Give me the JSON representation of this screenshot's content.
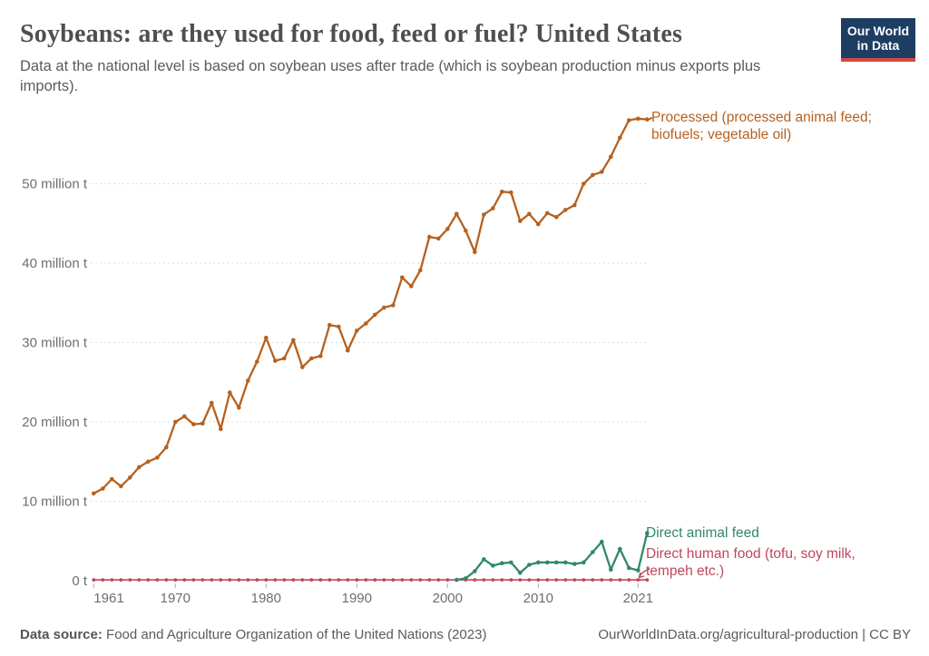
{
  "header": {
    "title": "Soybeans: are they used for food, feed or fuel? United States",
    "subtitle": "Data at the national level is based on soybean uses after trade (which is soybean production minus exports plus imports).",
    "logo": {
      "line1": "Our World",
      "line2": "in Data",
      "bg_color": "#1d3d63",
      "stripe_color": "#cf4a3f"
    }
  },
  "footer": {
    "source_label": "Data source:",
    "source_text": " Food and Agriculture Organization of the United Nations (2023)",
    "credit": "OurWorldInData.org/agricultural-production | CC BY"
  },
  "chart_data": {
    "type": "line",
    "title": "Soybeans: are they used for food, feed or fuel? United States",
    "subtitle": "Data at the national level is based on soybean uses after trade (which is soybean production minus exports plus imports).",
    "unit": "million tonnes",
    "grid": "horizontal dashed",
    "legend_position": "labels at right end of lines",
    "x_range": [
      1961,
      2022
    ],
    "ylim": [
      0,
      58.5
    ],
    "x_tick_years": [
      1961,
      1970,
      1980,
      1990,
      2000,
      2010,
      2021
    ],
    "x_ticks": [
      "1961",
      "1970",
      "1980",
      "1990",
      "2000",
      "2010",
      "2021"
    ],
    "y_tick_values": [
      0,
      10,
      20,
      30,
      40,
      50
    ],
    "y_ticks": [
      "0 t",
      "10 million t",
      "20 million t",
      "30 million t",
      "40 million t",
      "50 million t"
    ],
    "series": [
      {
        "id": "processed",
        "name": "Processed (processed animal feed; biofuels; vegetable oil)",
        "label_lines": [
          "Processed (processed animal feed;",
          "biofuels; vegetable oil)"
        ],
        "color": "#b5611f",
        "start_year": 1961,
        "values": [
          11.0,
          11.6,
          12.8,
          11.9,
          13.0,
          14.3,
          15.0,
          15.5,
          16.8,
          20.0,
          20.7,
          19.7,
          19.8,
          22.4,
          19.1,
          23.7,
          21.8,
          25.2,
          27.6,
          30.6,
          27.7,
          28.0,
          30.3,
          26.9,
          28.0,
          28.3,
          32.2,
          32.0,
          29.0,
          31.5,
          32.4,
          33.5,
          34.4,
          34.7,
          38.2,
          37.1,
          39.1,
          43.3,
          43.1,
          44.3,
          46.2,
          44.1,
          41.4,
          46.1,
          46.9,
          49.0,
          48.9,
          45.3,
          46.2,
          44.9,
          46.3,
          45.8,
          46.7,
          47.3,
          50.0,
          51.1,
          51.5,
          53.4,
          55.8,
          58.0,
          58.2,
          58.1
        ]
      },
      {
        "id": "direct-animal-feed",
        "name": "Direct animal feed",
        "label_lines": [
          "Direct animal feed"
        ],
        "color": "#318868",
        "start_year": 2001,
        "values": [
          0.1,
          0.3,
          1.2,
          2.7,
          1.9,
          2.2,
          2.3,
          1.0,
          2.0,
          2.3,
          2.3,
          2.3,
          2.3,
          2.1,
          2.3,
          3.6,
          4.9,
          1.4,
          4.0,
          1.6,
          1.3,
          6.0
        ]
      },
      {
        "id": "direct-human-food",
        "name": "Direct human food (tofu, soy milk, tempeh etc.)",
        "label_lines": [
          "Direct human food (tofu, soy milk,",
          "tempeh etc.)"
        ],
        "color": "#c0455b",
        "start_year": 1961,
        "values": [
          0.1,
          0.1,
          0.1,
          0.1,
          0.1,
          0.1,
          0.1,
          0.1,
          0.1,
          0.1,
          0.1,
          0.1,
          0.1,
          0.1,
          0.1,
          0.1,
          0.1,
          0.1,
          0.1,
          0.1,
          0.1,
          0.1,
          0.1,
          0.1,
          0.1,
          0.1,
          0.1,
          0.1,
          0.1,
          0.1,
          0.1,
          0.1,
          0.1,
          0.1,
          0.1,
          0.1,
          0.1,
          0.1,
          0.1,
          0.1,
          0.1,
          0.1,
          0.1,
          0.1,
          0.1,
          0.1,
          0.1,
          0.1,
          0.1,
          0.1,
          0.1,
          0.1,
          0.1,
          0.1,
          0.1,
          0.1,
          0.1,
          0.1,
          0.1,
          0.1,
          0.1,
          0.1
        ]
      }
    ]
  }
}
